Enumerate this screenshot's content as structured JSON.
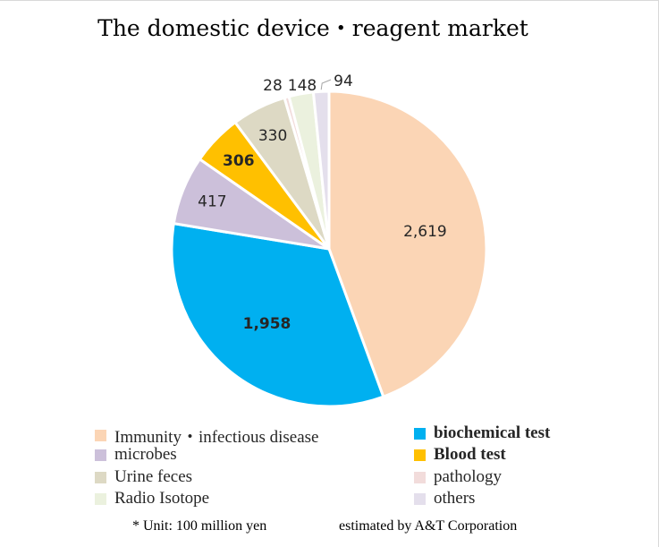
{
  "chart_data": {
    "type": "pie",
    "title": "The domestic device・reagent market",
    "unit_note": "* Unit: 100 million yen",
    "source_note": "estimated by A&T Corporation",
    "legend_position": "bottom",
    "slices": [
      {
        "name": "Immunity・infectious disease",
        "value": 2619,
        "label": "2,619",
        "color": "#fbd5b5",
        "legend_bold": false
      },
      {
        "name": "biochemical test",
        "value": 1958,
        "label": "1,958",
        "color": "#00b0f0",
        "legend_bold": true
      },
      {
        "name": "microbes",
        "value": 417,
        "label": "417",
        "color": "#ccc0da",
        "legend_bold": false
      },
      {
        "name": "Blood test",
        "value": 306,
        "label": "306",
        "color": "#ffc000",
        "legend_bold": true
      },
      {
        "name": "Urine feces",
        "value": 330,
        "label": "330",
        "color": "#ddd9c4",
        "legend_bold": false
      },
      {
        "name": "pathology",
        "value": 28,
        "label": "28",
        "color": "#f2dcdb",
        "legend_bold": false
      },
      {
        "name": "Radio Isotope",
        "value": 148,
        "label": "148",
        "color": "#ebf1de",
        "legend_bold": false
      },
      {
        "name": "others",
        "value": 94,
        "label": "94",
        "color": "#e4dfec",
        "legend_bold": false
      }
    ]
  }
}
